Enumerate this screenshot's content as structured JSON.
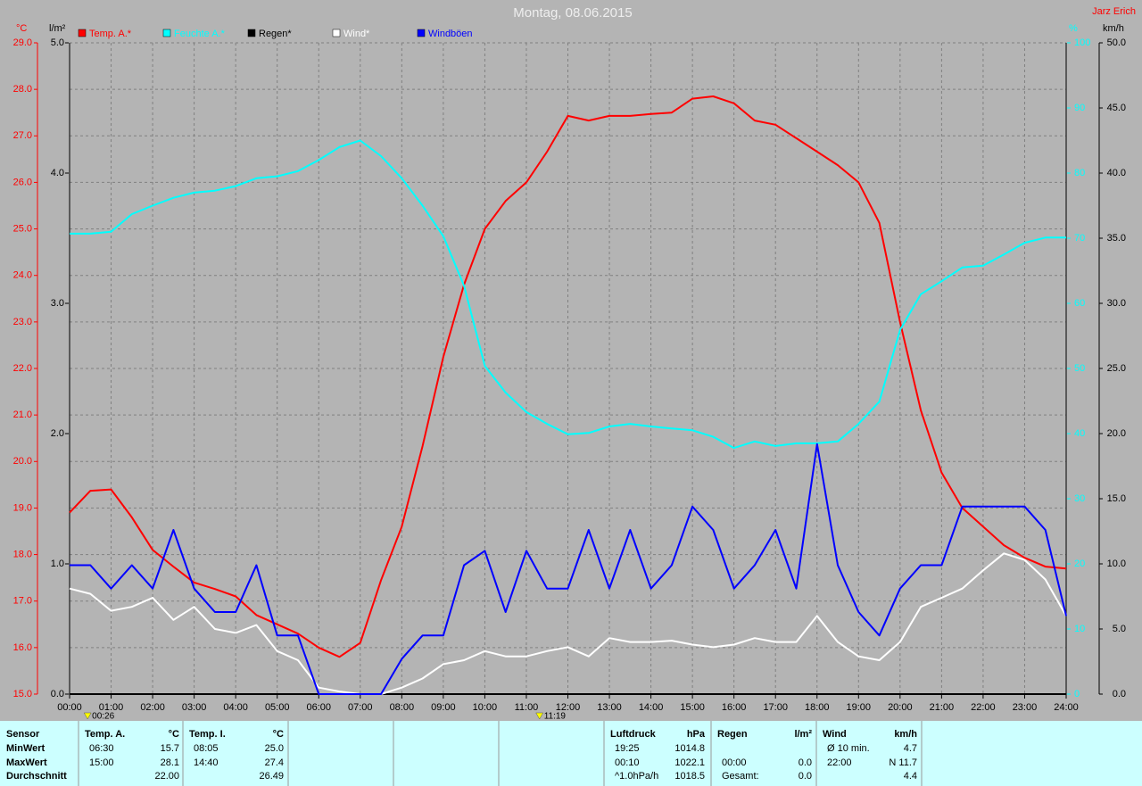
{
  "chart_data": {
    "type": "line",
    "title": "Montag, 08.06.2015",
    "author": "Jarz Erich",
    "x": [
      0,
      0.5,
      1,
      1.5,
      2,
      2.5,
      3,
      3.5,
      4,
      4.5,
      5,
      5.5,
      6,
      6.5,
      7,
      7.5,
      8,
      8.5,
      9,
      9.5,
      10,
      10.5,
      11,
      11.5,
      12,
      12.5,
      13,
      13.5,
      14,
      14.5,
      15,
      15.5,
      16,
      16.5,
      17,
      17.5,
      18,
      18.5,
      19,
      19.5,
      20,
      20.5,
      21,
      21.5,
      22,
      22.5,
      23,
      23.5,
      24
    ],
    "xlim": [
      0,
      24
    ],
    "xticks": [
      {
        "value": 0,
        "label": "00:00"
      },
      {
        "value": 1,
        "label": "01:00"
      },
      {
        "value": 2,
        "label": "02:00"
      },
      {
        "value": 3,
        "label": "03:00"
      },
      {
        "value": 4,
        "label": "04:00"
      },
      {
        "value": 5,
        "label": "05:00"
      },
      {
        "value": 6,
        "label": "06:00"
      },
      {
        "value": 7,
        "label": "07:00"
      },
      {
        "value": 8,
        "label": "08:00"
      },
      {
        "value": 9,
        "label": "09:00"
      },
      {
        "value": 10,
        "label": "10:00"
      },
      {
        "value": 11,
        "label": "11:00"
      },
      {
        "value": 12,
        "label": "12:00"
      },
      {
        "value": 13,
        "label": "13:00"
      },
      {
        "value": 14,
        "label": "14:00"
      },
      {
        "value": 15,
        "label": "15:00"
      },
      {
        "value": 16,
        "label": "16:00"
      },
      {
        "value": 17,
        "label": "17:00"
      },
      {
        "value": 18,
        "label": "18:00"
      },
      {
        "value": 19,
        "label": "19:00"
      },
      {
        "value": 20,
        "label": "20:00"
      },
      {
        "value": 21,
        "label": "21:00"
      },
      {
        "value": 22,
        "label": "22:00"
      },
      {
        "value": 23,
        "label": "23:00"
      },
      {
        "value": 24,
        "label": "24:00"
      }
    ],
    "ylabel": "°C",
    "ylim": [
      15,
      29
    ],
    "yticks": [
      {
        "value": 15,
        "label": "15.0"
      },
      {
        "value": 16,
        "label": "16.0"
      },
      {
        "value": 17,
        "label": "17.0"
      },
      {
        "value": 18,
        "label": "18.0"
      },
      {
        "value": 19,
        "label": "19.0"
      },
      {
        "value": 20,
        "label": "20.0"
      },
      {
        "value": 21,
        "label": "21.0"
      },
      {
        "value": 22,
        "label": "22.0"
      },
      {
        "value": 23,
        "label": "23.0"
      },
      {
        "value": 24,
        "label": "24.0"
      },
      {
        "value": 25,
        "label": "25.0"
      },
      {
        "value": 26,
        "label": "26.0"
      },
      {
        "value": 27,
        "label": "27.0"
      },
      {
        "value": 28,
        "label": "28.0"
      },
      {
        "value": 29,
        "label": "29.0"
      }
    ],
    "y3label": "l/m²",
    "y3lim": [
      0,
      5
    ],
    "y3ticks": [
      {
        "value": 0,
        "label": "0.0"
      },
      {
        "value": 1,
        "label": "1.0"
      },
      {
        "value": 2,
        "label": "2.0"
      },
      {
        "value": 3,
        "label": "3.0"
      },
      {
        "value": 4,
        "label": "4.0"
      },
      {
        "value": 5,
        "label": "5.0"
      }
    ],
    "y2label": "%",
    "y2lim": [
      0,
      100
    ],
    "y2ticks": [
      0,
      10,
      20,
      30,
      40,
      50,
      60,
      70,
      80,
      90,
      100
    ],
    "y4label": "km/h",
    "y4lim": [
      0,
      50
    ],
    "y4ticks": [
      {
        "value": 0,
        "label": "0.0"
      },
      {
        "value": 5,
        "label": "5.0"
      },
      {
        "value": 10,
        "label": "10.0"
      },
      {
        "value": 15,
        "label": "15.0"
      },
      {
        "value": 20,
        "label": "20.0"
      },
      {
        "value": 25,
        "label": "25.0"
      },
      {
        "value": 30,
        "label": "30.0"
      },
      {
        "value": 35,
        "label": "35.0"
      },
      {
        "value": 40,
        "label": "40.0"
      },
      {
        "value": 45,
        "label": "45.0"
      },
      {
        "value": 50,
        "label": "50.0"
      }
    ],
    "grid": true,
    "series": [
      {
        "name": "Temp. A.*",
        "color": "#ff0000",
        "axis": "y",
        "values": [
          18.9,
          19.37,
          19.4,
          18.8,
          18.1,
          17.74,
          17.4,
          17.26,
          17.1,
          16.7,
          16.5,
          16.3,
          16.0,
          15.8,
          16.1,
          17.45,
          18.6,
          20.33,
          22.25,
          23.8,
          25.0,
          25.6,
          26.0,
          26.66,
          27.43,
          27.33,
          27.43,
          27.43,
          27.47,
          27.5,
          27.8,
          27.85,
          27.7,
          27.33,
          27.24,
          26.95,
          26.66,
          26.37,
          26.0,
          25.13,
          23.0,
          21.1,
          19.76,
          19.0,
          18.6,
          18.2,
          17.93,
          17.74,
          17.7
        ]
      },
      {
        "name": "Feuchte A.*",
        "color": "#00ffff",
        "axis": "y2",
        "values": [
          70.7,
          70.7,
          71,
          73.7,
          75,
          76.2,
          77,
          77.3,
          78,
          79.2,
          79.5,
          80.3,
          82,
          84,
          85,
          82.6,
          79.2,
          75,
          70.3,
          62.7,
          50.4,
          46.3,
          43.3,
          41.5,
          39.9,
          40.1,
          41.1,
          41.5,
          41.1,
          40.8,
          40.5,
          39.5,
          37.8,
          38.8,
          38.1,
          38.5,
          38.5,
          38.8,
          41.5,
          44.9,
          55.9,
          61.4,
          63.4,
          65.5,
          65.8,
          67.5,
          69.3,
          70.1,
          70.1
        ]
      },
      {
        "name": "Regen*",
        "color": "#000000",
        "axis": "y3",
        "values": [
          0,
          0,
          0,
          0,
          0,
          0,
          0,
          0,
          0,
          0,
          0,
          0,
          0,
          0,
          0,
          0,
          0,
          0,
          0,
          0,
          0,
          0,
          0,
          0,
          0,
          0,
          0,
          0,
          0,
          0,
          0,
          0,
          0,
          0,
          0,
          0,
          0,
          0,
          0,
          0,
          0,
          0,
          0,
          0,
          0,
          0,
          0,
          0,
          0
        ]
      },
      {
        "name": "Wind*",
        "color": "#ffffff",
        "axis": "y4",
        "values": [
          8.1,
          7.7,
          6.4,
          6.7,
          7.4,
          5.7,
          6.7,
          5.0,
          4.7,
          5.3,
          3.3,
          2.6,
          0.5,
          0.2,
          0,
          0,
          0.5,
          1.2,
          2.3,
          2.6,
          3.3,
          2.9,
          2.9,
          3.3,
          3.6,
          2.9,
          4.3,
          4.0,
          4.0,
          4.1,
          3.8,
          3.6,
          3.8,
          4.3,
          4.0,
          4.0,
          6.0,
          4.0,
          2.9,
          2.6,
          4.0,
          6.7,
          7.4,
          8.1,
          9.5,
          10.8,
          10.3,
          8.8,
          6.0
        ]
      },
      {
        "name": "Windböen",
        "color": "#0000ff",
        "axis": "y4",
        "values": [
          9.9,
          9.9,
          8.1,
          9.9,
          8.1,
          12.6,
          8.1,
          6.3,
          6.3,
          9.9,
          4.5,
          4.5,
          0,
          0,
          0,
          0,
          2.7,
          4.5,
          4.5,
          9.9,
          11,
          6.3,
          11,
          8.1,
          8.1,
          12.6,
          8.1,
          12.6,
          8.1,
          9.9,
          14.4,
          12.6,
          8.1,
          9.9,
          12.6,
          8.1,
          19.2,
          9.9,
          6.3,
          4.5,
          8.1,
          9.9,
          9.9,
          14.4,
          14.4,
          14.4,
          14.4,
          12.6,
          6.0
        ]
      }
    ],
    "markers": [
      "00:26",
      "11:19"
    ]
  },
  "stats_table": {
    "row_labels": [
      "Sensor",
      "MinWert",
      "MaxWert",
      "Durchschnitt"
    ],
    "groups": [
      {
        "name": "Temp. A.",
        "unit": "°C",
        "rows": [
          [
            "06:30",
            "15.7"
          ],
          [
            "15:00",
            "28.1"
          ],
          [
            null,
            "22.00"
          ]
        ]
      },
      {
        "name": "Temp. I.",
        "unit": "°C",
        "rows": [
          [
            "08:05",
            "25.0"
          ],
          [
            "14:40",
            "27.4"
          ],
          [
            null,
            "26.49"
          ]
        ]
      },
      {
        "name": "Luftdruck",
        "unit": "hPa",
        "rows": [
          [
            "19:25",
            "1014.8"
          ],
          [
            "00:10",
            "1022.1"
          ],
          [
            "^1.0hPa/h",
            "1018.5"
          ]
        ]
      },
      {
        "name": "Regen",
        "unit": "l/m²",
        "rows": [
          [
            null,
            null
          ],
          [
            "00:00",
            "0.0"
          ],
          [
            "Gesamt:",
            "0.0"
          ]
        ]
      },
      {
        "name": "Wind",
        "unit": "km/h",
        "rows": [
          [
            "Ø 10 min.",
            "4.7"
          ],
          [
            "22:00",
            "N 11.7"
          ],
          [
            null,
            "4.4"
          ]
        ]
      }
    ]
  }
}
